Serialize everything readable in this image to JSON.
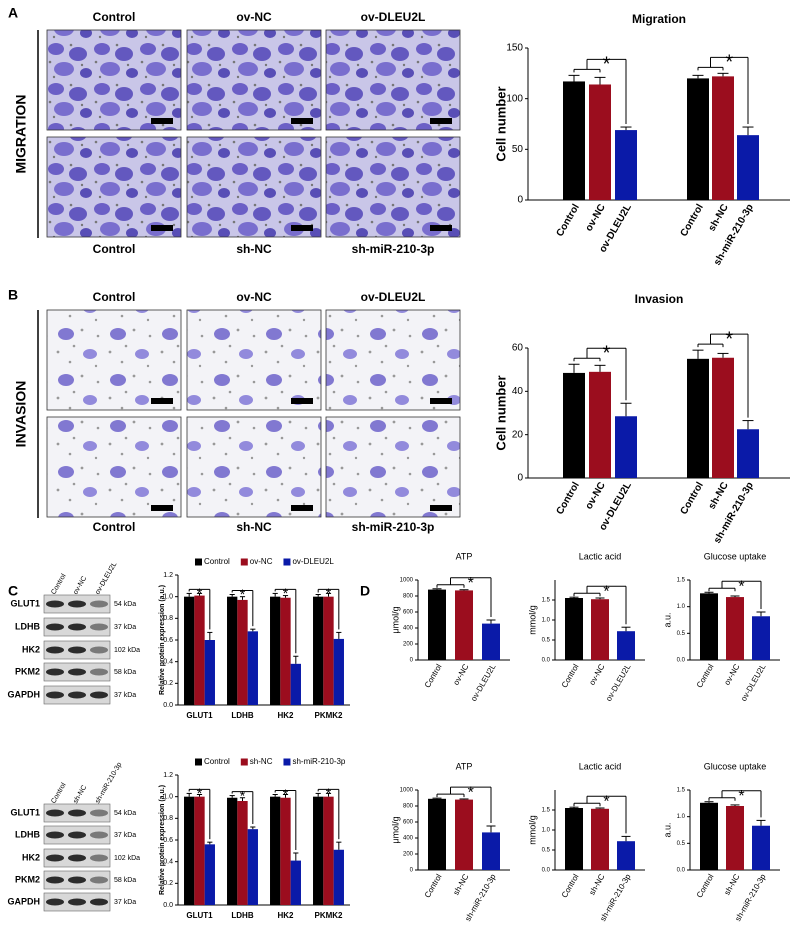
{
  "panel_labels": [
    "A",
    "B",
    "C",
    "D"
  ],
  "microscopy": [
    {
      "row_label": "MIGRATION",
      "top_labels": [
        "Control",
        "ov-NC",
        "ov-DLEU2L"
      ],
      "bottom_labels": [
        "Control",
        "sh-NC",
        "sh-miR-210-3p"
      ]
    },
    {
      "row_label": "INVASION",
      "top_labels": [
        "Control",
        "ov-NC",
        "ov-DLEU2L"
      ],
      "bottom_labels": [
        "Control",
        "sh-NC",
        "sh-miR-210-3p"
      ]
    }
  ],
  "blots": [
    {
      "lanes": [
        "Control",
        "ov-NC",
        "ov-DLEU2L"
      ],
      "proteins": [
        "GLUT1",
        "LDHB",
        "HK2",
        "PKM2",
        "GAPDH"
      ],
      "sizes": [
        "54 kDa",
        "37 kDa",
        "102 kDa",
        "58 kDa",
        "37 kDa"
      ]
    },
    {
      "lanes": [
        "Control",
        "sh-NC",
        "sh-miR-210-3p"
      ],
      "proteins": [
        "GLUT1",
        "LDHB",
        "HK2",
        "PKM2",
        "GAPDH"
      ],
      "sizes": [
        "54 kDa",
        "37 kDa",
        "102 kDa",
        "58 kDa",
        "37 kDa"
      ]
    }
  ],
  "chart_data": [
    {
      "type": "bar",
      "title": "Migration",
      "y_label": "Cell number",
      "categories": [
        "Control",
        "ov-NC",
        "ov-DLEU2L",
        "Control",
        "sh-NC",
        "sh-miR-210-3p"
      ],
      "values": [
        117,
        114,
        69,
        120,
        122,
        64
      ],
      "errors": [
        6,
        7,
        3,
        3,
        3,
        8
      ],
      "colors": [
        "#000000",
        "#9b0d1e",
        "#0a1aa8",
        "#000000",
        "#9b0d1e",
        "#0a1aa8"
      ],
      "ylim": [
        0,
        150
      ],
      "yticks": [
        0,
        50,
        100,
        150
      ],
      "annotations": [
        "*",
        "*"
      ]
    },
    {
      "type": "bar",
      "title": "Invasion",
      "y_label": "Cell number",
      "categories": [
        "Control",
        "ov-NC",
        "ov-DLEU2L",
        "Control",
        "sh-NC",
        "sh-miR-210-3p"
      ],
      "values": [
        48.5,
        49,
        28.5,
        55,
        55.5,
        22.5
      ],
      "errors": [
        4,
        3,
        6,
        4,
        2,
        4
      ],
      "colors": [
        "#000000",
        "#9b0d1e",
        "#0a1aa8",
        "#000000",
        "#9b0d1e",
        "#0a1aa8"
      ],
      "ylim": [
        0,
        60
      ],
      "yticks": [
        0,
        20,
        40,
        60
      ],
      "annotations": [
        "*",
        "*"
      ]
    },
    {
      "type": "grouped_bar",
      "y_label": "Relative protein expression (a.u.)",
      "categories": [
        "GLUT1",
        "LDHB",
        "HK2",
        "PKMK2"
      ],
      "series": [
        {
          "name": "Control",
          "color": "#000000",
          "values": [
            1.0,
            1.0,
            1.0,
            1.0
          ],
          "errors": [
            0.03,
            0.02,
            0.03,
            0.02
          ]
        },
        {
          "name": "ov-NC",
          "color": "#9b0d1e",
          "values": [
            1.01,
            0.97,
            0.99,
            1.0
          ],
          "errors": [
            0.02,
            0.03,
            0.02,
            0.03
          ]
        },
        {
          "name": "ov-DLEU2L",
          "color": "#0a1aa8",
          "values": [
            0.6,
            0.68,
            0.38,
            0.61
          ],
          "errors": [
            0.07,
            0.02,
            0.07,
            0.06
          ]
        }
      ],
      "ylim": [
        0,
        1.2
      ],
      "yticks": [
        {
          "value": 0,
          "label": "0.0"
        },
        0.2,
        0.4,
        0.6,
        0.8,
        {
          "value": 1,
          "label": "1.0"
        },
        1.2
      ],
      "annotations": [
        "*",
        "*",
        "*",
        "*"
      ]
    },
    {
      "type": "grouped_bar",
      "y_label": "Relative protein expression (a.u.)",
      "categories": [
        "GLUT1",
        "LDHB",
        "HK2",
        "PKMK2"
      ],
      "series": [
        {
          "name": "Control",
          "color": "#000000",
          "values": [
            1.0,
            0.99,
            1.0,
            1.0
          ],
          "errors": [
            0.03,
            0.02,
            0.02,
            0.03
          ]
        },
        {
          "name": "sh-NC",
          "color": "#9b0d1e",
          "values": [
            1.0,
            0.96,
            0.99,
            1.0
          ],
          "errors": [
            0.02,
            0.03,
            0.03,
            0.03
          ]
        },
        {
          "name": "sh-miR-210-3p",
          "color": "#0a1aa8",
          "values": [
            0.56,
            0.7,
            0.41,
            0.51
          ],
          "errors": [
            0.02,
            0.02,
            0.07,
            0.07
          ]
        }
      ],
      "ylim": [
        0,
        1.2
      ],
      "yticks": [
        {
          "value": 0,
          "label": "0.0"
        },
        0.2,
        0.4,
        0.6,
        0.8,
        {
          "value": 1,
          "label": "1.0"
        },
        1.2
      ],
      "annotations": [
        "*",
        "*",
        "*",
        "*"
      ]
    },
    {
      "type": "bar",
      "title": "ATP",
      "y_label": "μmol/g",
      "categories": [
        "Control",
        "ov-NC",
        "ov-DLEU2L"
      ],
      "values": [
        880,
        870,
        455
      ],
      "errors": [
        10,
        8,
        45
      ],
      "colors": [
        "#000000",
        "#9b0d1e",
        "#0a1aa8"
      ],
      "ylim": [
        0,
        1000
      ],
      "yticks": [
        0,
        200,
        400,
        600,
        800,
        1000
      ],
      "annotations": [
        "*"
      ]
    },
    {
      "type": "bar",
      "title": "Lactic acid",
      "y_label": "mmol/g",
      "categories": [
        "Control",
        "ov-NC",
        "ov-DLEU2L"
      ],
      "values": [
        1.55,
        1.52,
        0.72
      ],
      "errors": [
        0.02,
        0.03,
        0.1
      ],
      "colors": [
        "#000000",
        "#9b0d1e",
        "#0a1aa8"
      ],
      "ylim": [
        0,
        2
      ],
      "yticks": [
        {
          "value": 0,
          "label": "0.0"
        },
        0.5,
        {
          "value": 1,
          "label": "1.0"
        },
        1.5
      ],
      "annotations": [
        "*"
      ]
    },
    {
      "type": "bar",
      "title": "Glucose uptake",
      "y_label": "a.u.",
      "categories": [
        "Control",
        "ov-NC",
        "ov-DLEU2L"
      ],
      "values": [
        1.25,
        1.18,
        0.82
      ],
      "errors": [
        0.02,
        0.02,
        0.08
      ],
      "colors": [
        "#000000",
        "#9b0d1e",
        "#0a1aa8"
      ],
      "ylim": [
        0,
        1.5
      ],
      "yticks": [
        {
          "value": 0,
          "label": "0.0"
        },
        0.5,
        {
          "value": 1,
          "label": "1.0"
        },
        1.5
      ],
      "annotations": [
        "*"
      ]
    },
    {
      "type": "bar",
      "title": "ATP",
      "y_label": "μmol/g",
      "categories": [
        "Control",
        "sh-NC",
        "sh-miR-210-3p"
      ],
      "values": [
        890,
        880,
        470
      ],
      "errors": [
        8,
        8,
        80
      ],
      "colors": [
        "#000000",
        "#9b0d1e",
        "#0a1aa8"
      ],
      "ylim": [
        0,
        1000
      ],
      "yticks": [
        0,
        200,
        400,
        600,
        800,
        1000
      ],
      "annotations": [
        "*"
      ]
    },
    {
      "type": "bar",
      "title": "Lactic acid",
      "y_label": "mmol/g",
      "categories": [
        "Control",
        "sh-NC",
        "sh-miR-210-3p"
      ],
      "values": [
        1.55,
        1.53,
        0.72
      ],
      "errors": [
        0.02,
        0.02,
        0.12
      ],
      "colors": [
        "#000000",
        "#9b0d1e",
        "#0a1aa8"
      ],
      "ylim": [
        0,
        2
      ],
      "yticks": [
        {
          "value": 0,
          "label": "0.0"
        },
        0.5,
        {
          "value": 1,
          "label": "1.0"
        },
        1.5
      ],
      "annotations": [
        "*"
      ]
    },
    {
      "type": "bar",
      "title": "Glucose uptake",
      "y_label": "a.u.",
      "categories": [
        "Control",
        "sh-NC",
        "sh-miR-210-3p"
      ],
      "values": [
        1.26,
        1.2,
        0.83
      ],
      "errors": [
        0.02,
        0.02,
        0.1
      ],
      "colors": [
        "#000000",
        "#9b0d1e",
        "#0a1aa8"
      ],
      "ylim": [
        0,
        1.5
      ],
      "yticks": [
        {
          "value": 0,
          "label": "0.0"
        },
        0.5,
        {
          "value": 1,
          "label": "1.0"
        },
        1.5
      ],
      "annotations": [
        "*"
      ]
    }
  ]
}
